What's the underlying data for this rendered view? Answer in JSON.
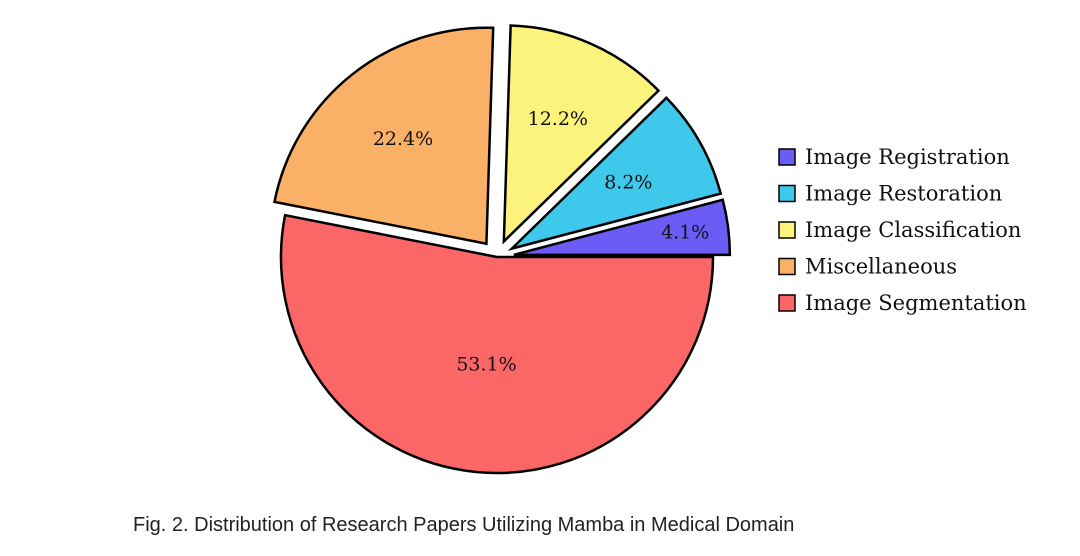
{
  "chart_data": {
    "type": "pie",
    "slices": [
      {
        "label": "Image Registration",
        "value": 4.1,
        "display": "4.1%",
        "color": "#6b5cf6",
        "explode": true
      },
      {
        "label": "Image Restoration",
        "value": 8.2,
        "display": "8.2%",
        "color": "#3ec8ec",
        "explode": true
      },
      {
        "label": "Image Classification",
        "value": 12.2,
        "display": "12.2%",
        "color": "#fbf37c",
        "explode": true
      },
      {
        "label": "Miscellaneous",
        "value": 22.4,
        "display": "22.4%",
        "color": "#fbb067",
        "explode": true
      },
      {
        "label": "Image Segmentation",
        "value": 53.1,
        "display": "53.1%",
        "color": "#fb6767",
        "explode": false
      }
    ],
    "start_angle_deg": 0,
    "direction": "counterclockwise",
    "legend_position": "right"
  },
  "caption": "Fig. 2.  Distribution of Research Papers Utilizing Mamba in Medical Domain"
}
